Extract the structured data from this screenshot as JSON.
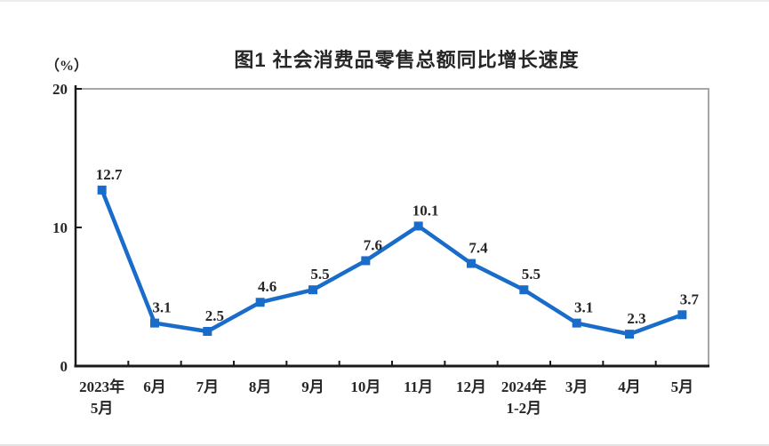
{
  "chart_data": {
    "type": "line",
    "title": "图1  社会消费品零售总额同比增长速度",
    "ylabel": "（%）",
    "xlabel": "",
    "categories": [
      "2023年\n5月",
      "6月",
      "7月",
      "8月",
      "9月",
      "10月",
      "11月",
      "12月",
      "2024年\n1-2月",
      "3月",
      "4月",
      "5月"
    ],
    "values": [
      12.7,
      3.1,
      2.5,
      4.6,
      5.5,
      7.6,
      10.1,
      7.4,
      5.5,
      3.1,
      2.3,
      3.7
    ],
    "ylim": [
      0,
      20
    ],
    "yticks": [
      0,
      10,
      20
    ],
    "grid": false,
    "legend": "none",
    "marker": "square",
    "line_color": "#1a6ccb",
    "label_color": "#262626",
    "axis_color": "#1a1a1a",
    "border_color": "#a6a6a6"
  }
}
